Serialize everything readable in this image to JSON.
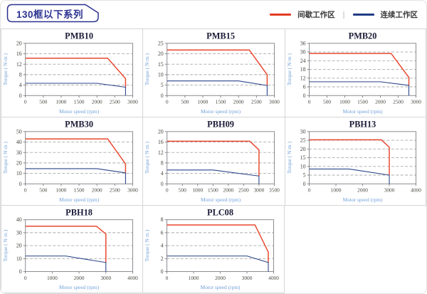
{
  "header": {
    "title": "130框以下系列",
    "legend": {
      "items": [
        {
          "label": "间歇工作区",
          "color": "#e23c22"
        },
        {
          "label": "连续工作区",
          "color": "#1f3c85"
        }
      ],
      "divider": "|"
    }
  },
  "colors": {
    "red": "#e8492f",
    "blue": "#2a448a",
    "grid": "#a9a9a9",
    "axis": "#7d7d85",
    "tick_text": "#4a4842",
    "axis_label": "#6f9fd8",
    "title_text": "#1c1c38",
    "tag": "#2b3190"
  },
  "chart_data": [
    {
      "type": "line",
      "title": "PMB10",
      "xlabel": "Motor speed (rpm)",
      "ylabel": "Torque ( N·m )",
      "xlim": [
        0,
        3000
      ],
      "xticks": [
        0,
        500,
        1000,
        1500,
        2000,
        2500,
        3000
      ],
      "ylim": [
        0,
        20
      ],
      "yticks": [
        0,
        4,
        8,
        12,
        16,
        20
      ],
      "series": [
        {
          "name": "间歇工作区",
          "color": "#e8492f",
          "width": 1.5,
          "points": [
            [
              0,
              14.3
            ],
            [
              2300,
              14.3
            ],
            [
              2800,
              6.5
            ],
            [
              2800,
              3.2
            ]
          ]
        },
        {
          "name": "连续工作区",
          "color": "#2a448a",
          "width": 1.1,
          "points": [
            [
              0,
              4.7
            ],
            [
              2000,
              4.7
            ],
            [
              2800,
              3.2
            ],
            [
              2800,
              0
            ]
          ]
        }
      ]
    },
    {
      "type": "line",
      "title": "PMB15",
      "xlabel": "Motor speed (rpm)",
      "ylabel": "Torque ( N·m )",
      "xlim": [
        0,
        3000
      ],
      "xticks": [
        0,
        500,
        1000,
        1500,
        2000,
        2500,
        3000
      ],
      "ylim": [
        0,
        25
      ],
      "yticks": [
        0,
        5,
        10,
        15,
        20,
        25
      ],
      "series": [
        {
          "name": "间歇工作区",
          "color": "#e8492f",
          "width": 1.5,
          "points": [
            [
              0,
              21.8
            ],
            [
              2300,
              21.8
            ],
            [
              2800,
              10
            ],
            [
              2800,
              4.8
            ]
          ]
        },
        {
          "name": "连续工作区",
          "color": "#2a448a",
          "width": 1.1,
          "points": [
            [
              0,
              7
            ],
            [
              2000,
              7
            ],
            [
              2800,
              4.8
            ],
            [
              2800,
              0
            ]
          ]
        }
      ]
    },
    {
      "type": "line",
      "title": "PMB20",
      "xlabel": "Motor speed (rpm)",
      "ylabel": "Torque ( N·m )",
      "xlim": [
        0,
        3000
      ],
      "xticks": [
        0,
        500,
        1000,
        1500,
        2000,
        2500,
        3000
      ],
      "ylim": [
        0,
        36
      ],
      "yticks": [
        0,
        6,
        12,
        18,
        24,
        30,
        36
      ],
      "series": [
        {
          "name": "间歇工作区",
          "color": "#e8492f",
          "width": 1.5,
          "points": [
            [
              0,
              29
            ],
            [
              2300,
              29
            ],
            [
              2800,
              12.5
            ],
            [
              2800,
              7
            ]
          ]
        },
        {
          "name": "连续工作区",
          "color": "#2a448a",
          "width": 1.1,
          "points": [
            [
              0,
              9.5
            ],
            [
              2000,
              9.5
            ],
            [
              2800,
              7
            ],
            [
              2800,
              0
            ]
          ]
        }
      ]
    },
    {
      "type": "line",
      "title": "PMB30",
      "xlabel": "Motor speed (rpm)",
      "ylabel": "Torque ( N·m )",
      "xlim": [
        0,
        3000
      ],
      "xticks": [
        0,
        500,
        1000,
        1500,
        2000,
        2500,
        3000
      ],
      "ylim": [
        0,
        50
      ],
      "yticks": [
        0,
        10,
        20,
        30,
        40,
        50
      ],
      "series": [
        {
          "name": "间歇工作区",
          "color": "#e8492f",
          "width": 1.5,
          "points": [
            [
              0,
              43
            ],
            [
              2300,
              43
            ],
            [
              2800,
              19
            ],
            [
              2800,
              10.5
            ]
          ]
        },
        {
          "name": "连续工作区",
          "color": "#2a448a",
          "width": 1.1,
          "points": [
            [
              0,
              14.5
            ],
            [
              2000,
              14.5
            ],
            [
              2800,
              10.5
            ],
            [
              2800,
              0
            ]
          ]
        }
      ]
    },
    {
      "type": "line",
      "title": "PBH09",
      "xlabel": "Motor speed (rpm)",
      "ylabel": "Torque ( N·m )",
      "xlim": [
        0,
        3500
      ],
      "xticks": [
        0,
        500,
        1000,
        1500,
        2000,
        2500,
        3000,
        3500
      ],
      "ylim": [
        0,
        20
      ],
      "yticks": [
        0,
        4,
        8,
        12,
        16,
        20
      ],
      "series": [
        {
          "name": "间歇工作区",
          "color": "#e8492f",
          "width": 1.5,
          "points": [
            [
              0,
              16.3
            ],
            [
              2700,
              16.3
            ],
            [
              3000,
              13
            ],
            [
              3000,
              3
            ]
          ]
        },
        {
          "name": "连续工作区",
          "color": "#2a448a",
          "width": 1.1,
          "points": [
            [
              0,
              5.3
            ],
            [
              1500,
              5.3
            ],
            [
              3000,
              3
            ],
            [
              3000,
              0
            ]
          ]
        }
      ]
    },
    {
      "type": "line",
      "title": "PBH13",
      "xlabel": "Motor speed (rpm)",
      "ylabel": "Torque ( N·m )",
      "xlim": [
        0,
        4000
      ],
      "xticks": [
        0,
        1000,
        2000,
        3000,
        4000
      ],
      "ylim": [
        0,
        30
      ],
      "yticks": [
        0,
        5,
        10,
        15,
        20,
        25,
        30
      ],
      "series": [
        {
          "name": "间歇工作区",
          "color": "#e8492f",
          "width": 1.5,
          "points": [
            [
              0,
              25.3
            ],
            [
              2700,
              25.3
            ],
            [
              3000,
              21
            ],
            [
              3000,
              5
            ]
          ]
        },
        {
          "name": "连续工作区",
          "color": "#2a448a",
          "width": 1.1,
          "points": [
            [
              0,
              8.5
            ],
            [
              1500,
              8.5
            ],
            [
              3000,
              5
            ],
            [
              3000,
              0
            ]
          ]
        }
      ]
    },
    {
      "type": "line",
      "title": "PBH18",
      "xlabel": "Motor speed (rpm)",
      "ylabel": "Torque ( N·m )",
      "xlim": [
        0,
        4000
      ],
      "xticks": [
        0,
        1000,
        2000,
        3000,
        4000
      ],
      "ylim": [
        0,
        40
      ],
      "yticks": [
        0,
        10,
        20,
        30,
        40
      ],
      "series": [
        {
          "name": "间歇工作区",
          "color": "#e8492f",
          "width": 1.5,
          "points": [
            [
              0,
              35
            ],
            [
              2650,
              35
            ],
            [
              3000,
              29
            ],
            [
              3000,
              7
            ]
          ]
        },
        {
          "name": "连续工作区",
          "color": "#2a448a",
          "width": 1.1,
          "points": [
            [
              0,
              12
            ],
            [
              1500,
              12
            ],
            [
              3000,
              7
            ],
            [
              3000,
              0
            ]
          ]
        }
      ]
    },
    {
      "type": "line",
      "title": "PLC08",
      "xlabel": "Motor speed (rpm)",
      "ylabel": "Torque ( N·m )",
      "xlim": [
        0,
        4000
      ],
      "xticks": [
        0,
        1000,
        2000,
        3000,
        4000
      ],
      "ylim": [
        0,
        8
      ],
      "yticks": [
        0,
        2,
        4,
        6,
        8
      ],
      "series": [
        {
          "name": "间歇工作区",
          "color": "#e8492f",
          "width": 1.5,
          "points": [
            [
              0,
              7.2
            ],
            [
              3300,
              7.2
            ],
            [
              3800,
              3
            ],
            [
              3800,
              1.4
            ]
          ]
        },
        {
          "name": "连续工作区",
          "color": "#2a448a",
          "width": 1.1,
          "points": [
            [
              0,
              2.4
            ],
            [
              3000,
              2.4
            ],
            [
              3800,
              1.4
            ],
            [
              3800,
              0
            ]
          ]
        }
      ]
    }
  ]
}
